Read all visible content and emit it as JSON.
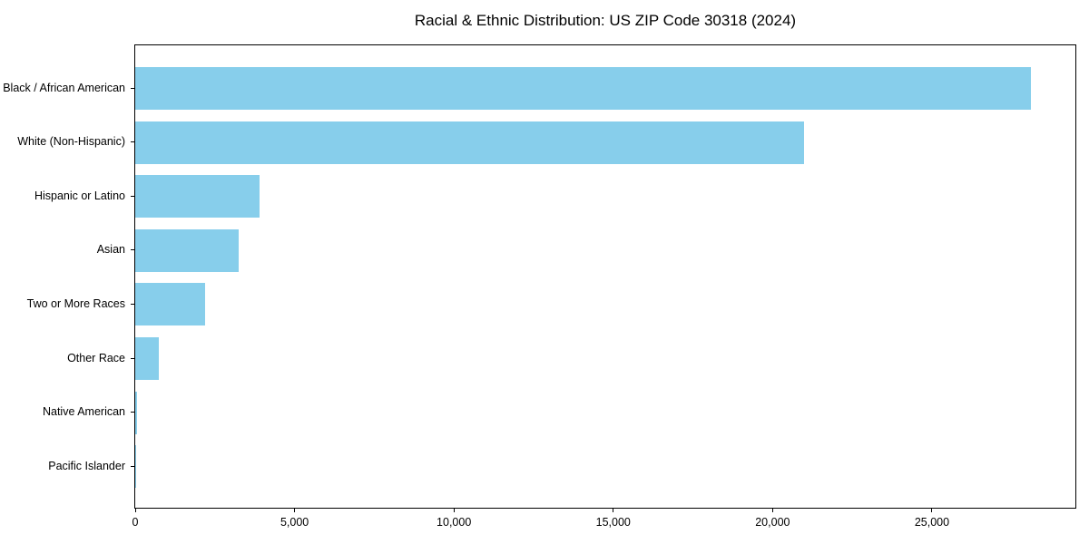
{
  "chart_data": {
    "type": "bar",
    "orientation": "horizontal",
    "title": "Racial & Ethnic Distribution: US ZIP Code 30318 (2024)",
    "categories": [
      "Black / African American",
      "White (Non-Hispanic)",
      "Hispanic or Latino",
      "Asian",
      "Two or More Races",
      "Other Race",
      "Native American",
      "Pacific Islander"
    ],
    "values": [
      28100,
      21000,
      3900,
      3250,
      2200,
      750,
      45,
      15
    ],
    "xlabel": "",
    "ylabel": "",
    "xlim": [
      0,
      29500
    ],
    "xticks": [
      0,
      5000,
      10000,
      15000,
      20000,
      25000
    ],
    "xtick_labels": [
      "0",
      "5,000",
      "10,000",
      "15,000",
      "20,000",
      "25,000"
    ],
    "grid": false,
    "legend_position": "none",
    "bar_color": "#87CEEB",
    "frame_color": "#000000",
    "background_color": "#ffffff"
  }
}
